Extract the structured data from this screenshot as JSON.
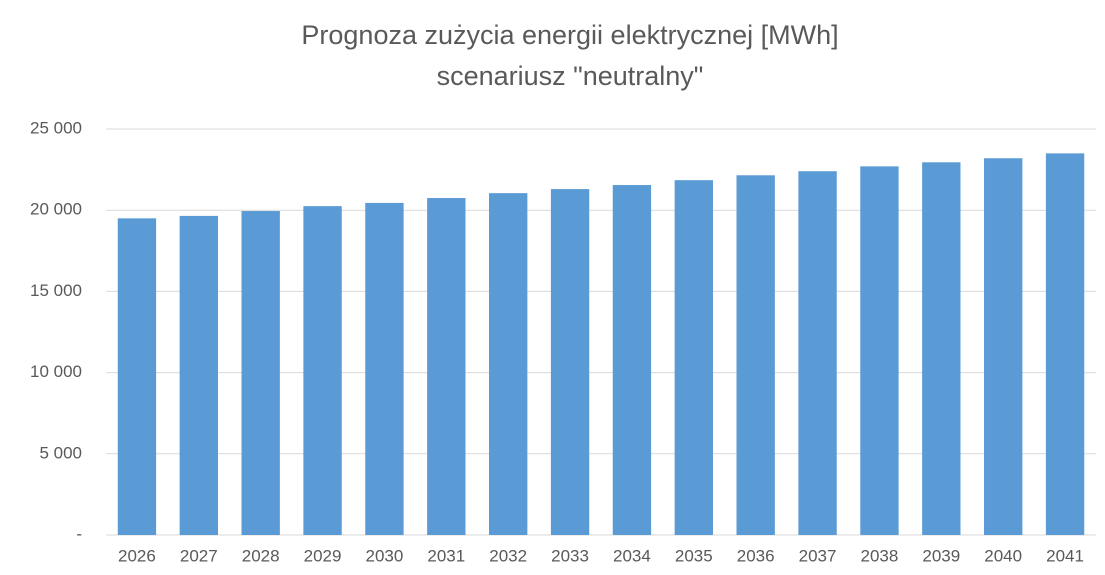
{
  "chart_data": {
    "type": "bar",
    "title": "Prognoza zużycia energii elektrycznej  [MWh]",
    "subtitle": "scenariusz \"neutralny\"",
    "categories": [
      "2026",
      "2027",
      "2028",
      "2029",
      "2030",
      "2031",
      "2032",
      "2033",
      "2034",
      "2035",
      "2036",
      "2037",
      "2038",
      "2039",
      "2040",
      "2041"
    ],
    "values": [
      19500,
      19650,
      19950,
      20250,
      20450,
      20750,
      21050,
      21300,
      21550,
      21850,
      22150,
      22400,
      22700,
      22950,
      23200,
      23500
    ],
    "color": "#5b9bd5",
    "ylim": [
      0,
      25000
    ],
    "yticks": [
      {
        "value": 0,
        "label": "-"
      },
      {
        "value": 5000,
        "label": "5 000"
      },
      {
        "value": 10000,
        "label": "10 000"
      },
      {
        "value": 15000,
        "label": "15 000"
      },
      {
        "value": 20000,
        "label": "20 000"
      },
      {
        "value": 25000,
        "label": "25 000"
      }
    ],
    "grid": true
  }
}
